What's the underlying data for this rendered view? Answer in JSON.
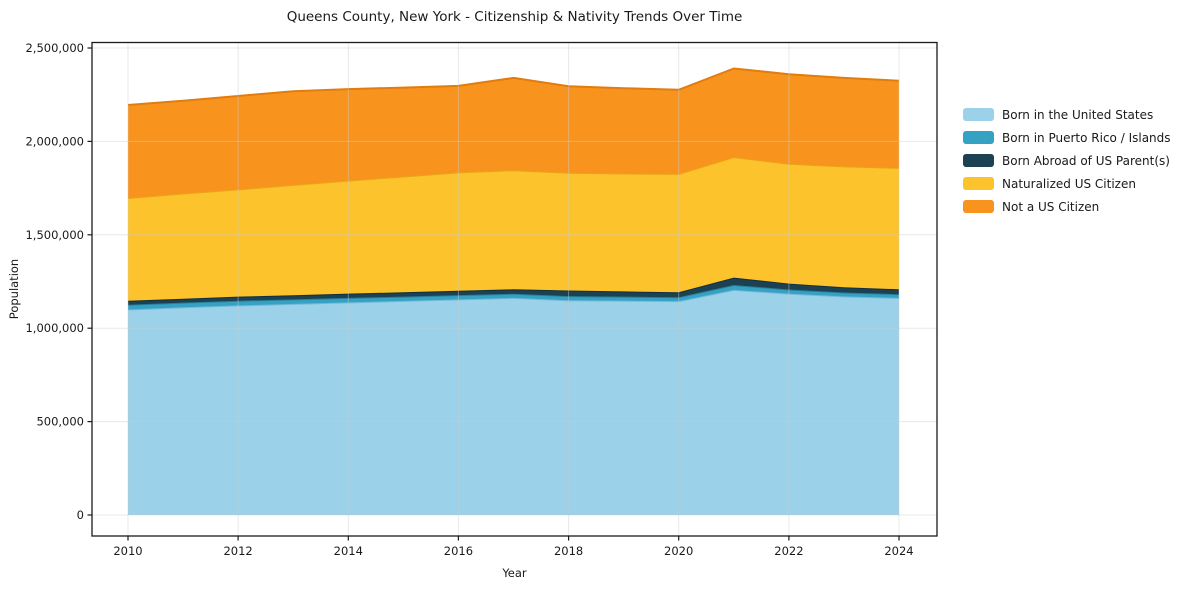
{
  "chart_data": {
    "type": "area",
    "stacked": true,
    "title": "Queens County, New York - Citizenship & Nativity Trends Over Time",
    "xlabel": "Year",
    "ylabel": "Population",
    "x": [
      2010,
      2011,
      2012,
      2013,
      2014,
      2015,
      2016,
      2017,
      2018,
      2019,
      2020,
      2021,
      2022,
      2023,
      2024
    ],
    "series": [
      {
        "name": "Born in the United States",
        "color": "#9bd1e9",
        "edge_color": "#74b9d8",
        "values": [
          1100000,
          1112000,
          1122000,
          1130000,
          1138000,
          1146000,
          1154000,
          1162000,
          1150000,
          1148000,
          1145000,
          1205000,
          1185000,
          1170000,
          1162000
        ]
      },
      {
        "name": "Born in Puerto Rico / Islands",
        "color": "#35a2c3",
        "edge_color": "#27809b",
        "values": [
          26000,
          25000,
          25000,
          24000,
          24000,
          23000,
          23000,
          22000,
          22000,
          21000,
          21000,
          26000,
          22000,
          21000,
          20000
        ]
      },
      {
        "name": "Born Abroad of US Parent(s)",
        "color": "#1c4152",
        "edge_color": "#12303d",
        "values": [
          21000,
          21000,
          22000,
          22000,
          23000,
          23000,
          24000,
          24000,
          30000,
          28000,
          26000,
          40000,
          32000,
          28000,
          26000
        ]
      },
      {
        "name": "Naturalized US Citizen",
        "color": "#fcc32d",
        "edge_color": "#e9a517",
        "values": [
          550000,
          563000,
          574000,
          591000,
          605000,
          620000,
          633000,
          638000,
          630000,
          631000,
          634000,
          645000,
          641000,
          647000,
          650000
        ]
      },
      {
        "name": "Not a US Citizen",
        "color": "#f8941e",
        "edge_color": "#e17c0e",
        "values": [
          498000,
          497000,
          500000,
          501000,
          490000,
          476000,
          463000,
          494000,
          463000,
          457000,
          450000,
          474000,
          480000,
          474000,
          467000
        ]
      }
    ],
    "xticks": [
      2010,
      2012,
      2014,
      2016,
      2018,
      2020,
      2022,
      2024
    ],
    "yticks": [
      0,
      500000,
      1000000,
      1500000,
      2000000,
      2500000
    ],
    "xlim": [
      2010,
      2024
    ],
    "ylim": [
      0,
      2500000
    ],
    "grid": true,
    "legend_position": "right"
  },
  "style": {
    "background": "#ffffff",
    "text_color": "#1a1a1a",
    "grid_color": "#cccccc",
    "spine_color": "#1a1a1a"
  }
}
